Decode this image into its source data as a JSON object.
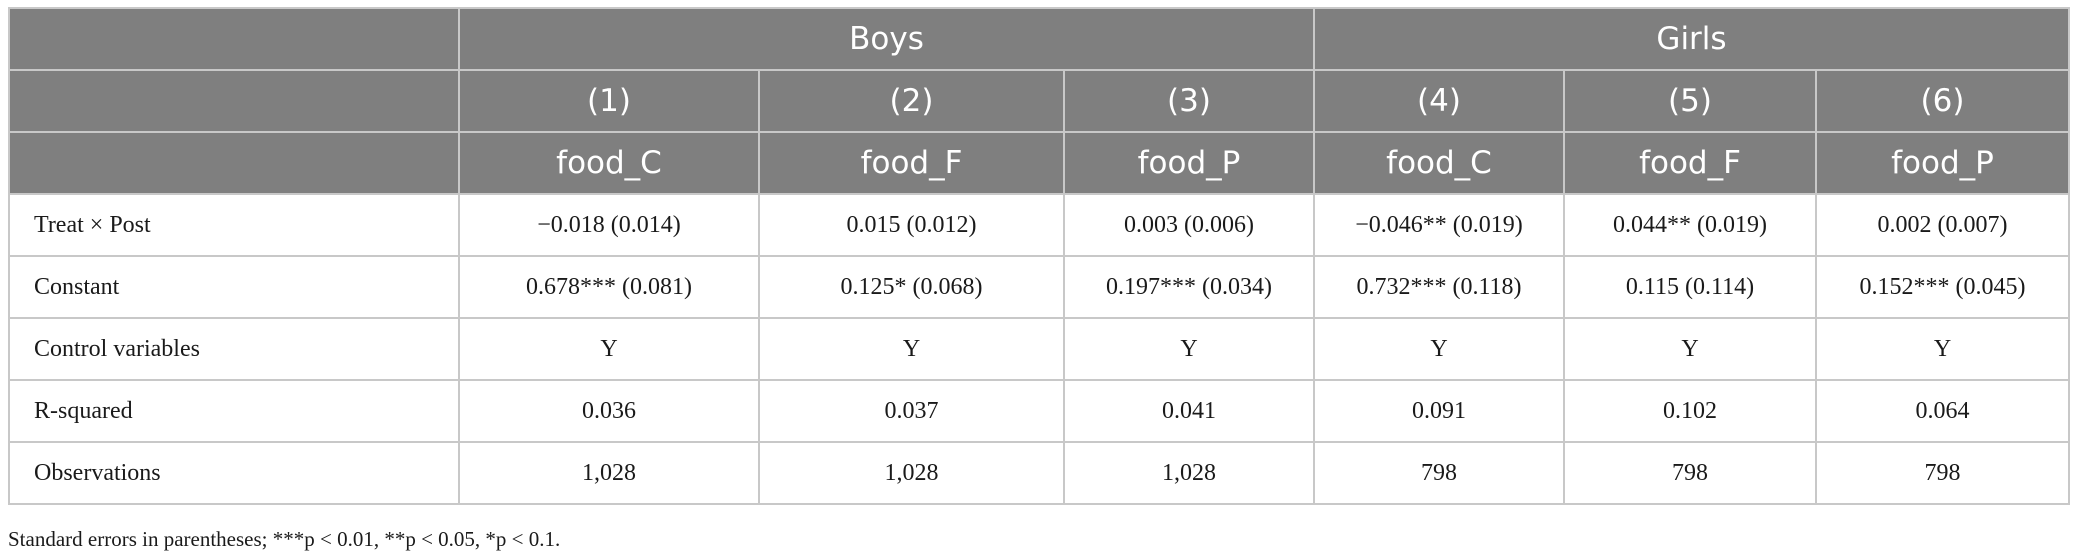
{
  "groups": {
    "boys": "Boys",
    "girls": "Girls"
  },
  "columns": {
    "numbers": [
      "(1)",
      "(2)",
      "(3)",
      "(4)",
      "(5)",
      "(6)"
    ],
    "outcomes": [
      "food_C",
      "food_F",
      "food_P",
      "food_C",
      "food_F",
      "food_P"
    ]
  },
  "rows": [
    {
      "label": "Treat × Post",
      "cells": [
        "−0.018 (0.014)",
        "0.015 (0.012)",
        "0.003 (0.006)",
        "−0.046** (0.019)",
        "0.044** (0.019)",
        "0.002 (0.007)"
      ]
    },
    {
      "label": "Constant",
      "cells": [
        "0.678*** (0.081)",
        "0.125* (0.068)",
        "0.197*** (0.034)",
        "0.732*** (0.118)",
        "0.115 (0.114)",
        "0.152*** (0.045)"
      ]
    },
    {
      "label": "Control variables",
      "cells": [
        "Y",
        "Y",
        "Y",
        "Y",
        "Y",
        "Y"
      ]
    },
    {
      "label": "R-squared",
      "cells": [
        "0.036",
        "0.037",
        "0.041",
        "0.091",
        "0.102",
        "0.064"
      ]
    },
    {
      "label": "Observations",
      "cells": [
        "1,028",
        "1,028",
        "1,028",
        "798",
        "798",
        "798"
      ]
    }
  ],
  "footnote": "Standard errors in parentheses; ***p < 0.01, **p < 0.05, *p < 0.1."
}
